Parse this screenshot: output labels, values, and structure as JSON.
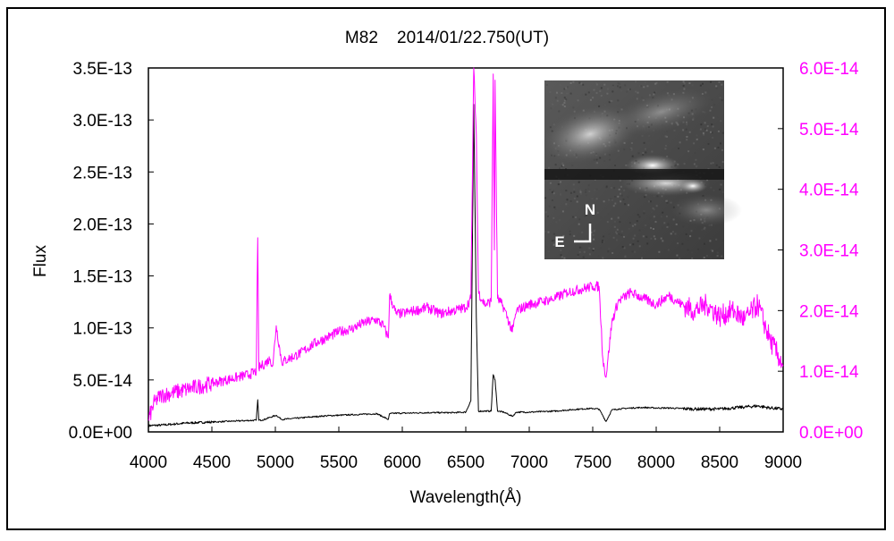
{
  "chart_data": {
    "type": "line",
    "title": "M82    2014/01/22.750(UT)",
    "xlabel": "Wavelength(Å)",
    "ylabel": "Flux",
    "xlim": [
      4000,
      9000
    ],
    "ylim_left": [
      0,
      3.5e-13
    ],
    "ylim_right": [
      0,
      6e-14
    ],
    "x_ticks": [
      "4000",
      "4500",
      "5000",
      "5500",
      "6000",
      "6500",
      "7000",
      "7500",
      "8000",
      "8500",
      "9000"
    ],
    "y_left_ticks": [
      "0.0E+00",
      "5.0E-14",
      "1.0E-13",
      "1.5E-13",
      "2.0E-13",
      "2.5E-13",
      "3.0E-13",
      "3.5E-13"
    ],
    "y_right_ticks": [
      "0.0E+00",
      "1.0E-14",
      "2.0E-14",
      "3.0E-14",
      "4.0E-14",
      "5.0E-14",
      "6.0E-14"
    ],
    "grid": false,
    "series": [
      {
        "axis": "left",
        "color": "#000000",
        "x": [
          4000,
          4100,
          4200,
          4300,
          4400,
          4500,
          4600,
          4700,
          4800,
          4850,
          4861,
          4870,
          4900,
          4959,
          5007,
          5050,
          5100,
          5200,
          5300,
          5400,
          5500,
          5600,
          5700,
          5800,
          5890,
          5900,
          5950,
          6000,
          6100,
          6200,
          6300,
          6400,
          6500,
          6540,
          6563,
          6583,
          6600,
          6650,
          6700,
          6716,
          6731,
          6750,
          6800,
          6867,
          6900,
          7000,
          7100,
          7200,
          7300,
          7400,
          7500,
          7550,
          7605,
          7650,
          7700,
          7800,
          7900,
          8000,
          8100,
          8200,
          8300,
          8400,
          8500,
          8600,
          8700,
          8800,
          8900,
          9000
        ],
        "values": [
          6e-15,
          6.5e-15,
          7.5e-15,
          8.5e-15,
          9e-15,
          9.5e-15,
          1e-14,
          1.05e-14,
          1.1e-14,
          1.12e-14,
          3.1e-14,
          1.12e-14,
          1.15e-14,
          1.4e-14,
          1.6e-14,
          1.2e-14,
          1.25e-14,
          1.35e-14,
          1.45e-14,
          1.55e-14,
          1.6e-14,
          1.65e-14,
          1.7e-14,
          1.75e-14,
          1.2e-14,
          1.75e-14,
          1.8e-14,
          1.8e-14,
          1.82e-14,
          1.85e-14,
          1.85e-14,
          1.85e-14,
          1.9e-14,
          3e-14,
          3.15e-13,
          1.1e-13,
          2e-14,
          2e-14,
          2e-14,
          5.5e-14,
          5e-14,
          2e-14,
          1.9e-14,
          1.5e-14,
          1.9e-14,
          1.9e-14,
          1.95e-14,
          2e-14,
          2.1e-14,
          2.2e-14,
          2.25e-14,
          2.2e-14,
          1e-14,
          2.1e-14,
          2.2e-14,
          2.3e-14,
          2.35e-14,
          2.3e-14,
          2.3e-14,
          2.25e-14,
          2.2e-14,
          2.2e-14,
          2.2e-14,
          2.3e-14,
          2.4e-14,
          2.5e-14,
          2.3e-14,
          2.2e-14
        ]
      },
      {
        "axis": "right",
        "color": "#ff00ff",
        "x": [
          4000,
          4050,
          4100,
          4200,
          4300,
          4400,
          4500,
          4600,
          4700,
          4800,
          4850,
          4861,
          4870,
          4900,
          4959,
          4980,
          5007,
          5050,
          5100,
          5200,
          5300,
          5400,
          5500,
          5600,
          5700,
          5800,
          5850,
          5890,
          5900,
          5950,
          6000,
          6100,
          6200,
          6300,
          6400,
          6500,
          6540,
          6563,
          6583,
          6600,
          6650,
          6700,
          6716,
          6725,
          6731,
          6750,
          6800,
          6867,
          6900,
          7000,
          7100,
          7200,
          7300,
          7400,
          7500,
          7550,
          7580,
          7605,
          7620,
          7650,
          7700,
          7800,
          7900,
          8000,
          8100,
          8200,
          8300,
          8400,
          8500,
          8600,
          8700,
          8800,
          8900,
          9000
        ],
        "values": [
          2e-15,
          5e-15,
          6e-15,
          6.5e-15,
          7e-15,
          7.5e-15,
          8e-15,
          8.5e-15,
          9e-15,
          9.5e-15,
          1e-14,
          3.2e-14,
          1.05e-14,
          1.1e-14,
          1.2e-14,
          1.1e-14,
          1.75e-14,
          1.15e-14,
          1.2e-14,
          1.3e-14,
          1.45e-14,
          1.55e-14,
          1.65e-14,
          1.7e-14,
          1.8e-14,
          1.85e-14,
          1.75e-14,
          1.55e-14,
          2.25e-14,
          1.95e-14,
          1.95e-14,
          2e-14,
          2.05e-14,
          1.95e-14,
          2e-14,
          2.05e-14,
          2.2e-14,
          6e-14,
          4.9e-14,
          2.3e-14,
          2.1e-14,
          2.15e-14,
          5.9e-14,
          3e-14,
          5.8e-14,
          2.2e-14,
          2.05e-14,
          1.65e-14,
          2e-14,
          2.1e-14,
          2.15e-14,
          2.2e-14,
          2.3e-14,
          2.35e-14,
          2.4e-14,
          2.4e-14,
          1.2e-14,
          9e-15,
          1.2e-14,
          1.8e-14,
          2.15e-14,
          2.3e-14,
          2.2e-14,
          2.1e-14,
          2.25e-14,
          2.1e-14,
          2e-14,
          2.1e-14,
          1.9e-14,
          2e-14,
          1.85e-14,
          2.1e-14,
          1.5e-14,
          1.1e-14
        ]
      }
    ]
  },
  "inset": {
    "north_label": "N",
    "east_label": "E"
  }
}
